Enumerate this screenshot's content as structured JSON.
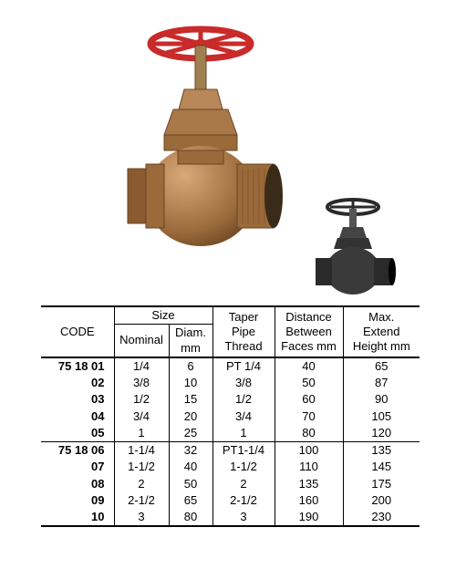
{
  "headers": {
    "code": "CODE",
    "size": "Size",
    "nominal": "Nominal",
    "diam": "Diam.\nmm",
    "taper": "Taper\nPipe\nThread",
    "dist": "Distance\nBetween\nFaces mm",
    "height": "Max.\nExtend\nHeight mm"
  },
  "rows1": [
    {
      "code": "75 18 01",
      "nominal": "1/4",
      "diam": "6",
      "taper": "PT 1/4",
      "dist": "40",
      "height": "65"
    },
    {
      "code": "02",
      "nominal": "3/8",
      "diam": "10",
      "taper": "3/8",
      "dist": "50",
      "height": "87"
    },
    {
      "code": "03",
      "nominal": "1/2",
      "diam": "15",
      "taper": "1/2",
      "dist": "60",
      "height": "90"
    },
    {
      "code": "04",
      "nominal": "3/4",
      "diam": "20",
      "taper": "3/4",
      "dist": "70",
      "height": "105"
    },
    {
      "code": "05",
      "nominal": "1",
      "diam": "25",
      "taper": "1",
      "dist": "80",
      "height": "120"
    }
  ],
  "rows2": [
    {
      "code": "75 18 06",
      "nominal": "1-1/4",
      "diam": "32",
      "taper": "PT1-1/4",
      "dist": "100",
      "height": "135"
    },
    {
      "code": "07",
      "nominal": "1-1/2",
      "diam": "40",
      "taper": "1-1/2",
      "dist": "110",
      "height": "145"
    },
    {
      "code": "08",
      "nominal": "2",
      "diam": "50",
      "taper": "2",
      "dist": "135",
      "height": "175"
    },
    {
      "code": "09",
      "nominal": "2-1/2",
      "diam": "65",
      "taper": "2-1/2",
      "dist": "160",
      "height": "200"
    },
    {
      "code": "10",
      "nominal": "3",
      "diam": "80",
      "taper": "3",
      "dist": "190",
      "height": "230"
    }
  ],
  "colors": {
    "handwheel": "#c92a2a",
    "bronze_light": "#c89060",
    "bronze_mid": "#9a6a3a",
    "bronze_dark": "#6b4423",
    "stem": "#a08050",
    "small_dark": "#2a2a2a"
  },
  "colwidths": [
    "80",
    "60",
    "48",
    "68",
    "75",
    "84"
  ]
}
